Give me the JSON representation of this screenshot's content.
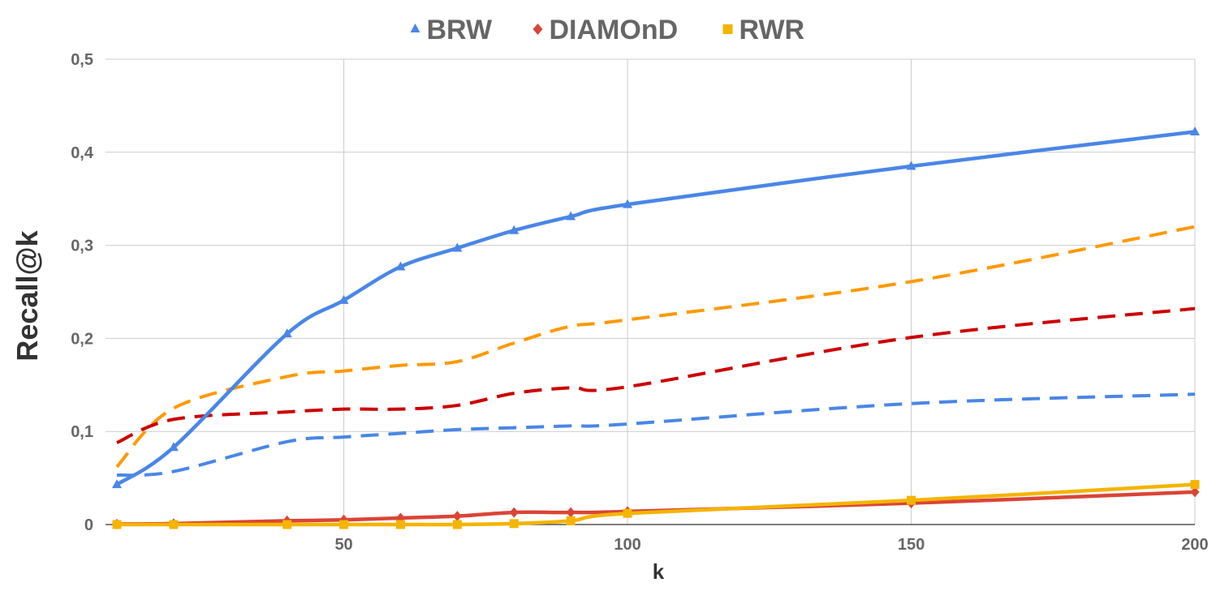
{
  "chart_data": {
    "type": "line",
    "title": "",
    "xlabel": "k",
    "ylabel": "Recall@k",
    "xlim": [
      8,
      200
    ],
    "ylim": [
      0,
      0.5
    ],
    "grid": true,
    "legend_position": "top-center",
    "x_ticks": [
      50,
      100,
      150,
      200
    ],
    "x_tick_labels": [
      "50",
      "100",
      "150",
      "200"
    ],
    "y_ticks": [
      0,
      0.1,
      0.2,
      0.3,
      0.4,
      0.5
    ],
    "y_tick_labels": [
      "0",
      "0,1",
      "0,2",
      "0,3",
      "0,4",
      "0,5"
    ],
    "x": [
      10,
      20,
      40,
      50,
      60,
      70,
      80,
      90,
      100,
      150,
      200
    ],
    "series": [
      {
        "name": "BRW",
        "legend": true,
        "color": "#4a86e8",
        "style": "solid",
        "marker": "triangle",
        "values": [
          0.043,
          0.083,
          0.205,
          0.241,
          0.277,
          0.297,
          0.316,
          0.331,
          0.344,
          0.385,
          0.422
        ]
      },
      {
        "name": "DIAMOnD",
        "legend": true,
        "color": "#db4437",
        "style": "solid",
        "marker": "diamond",
        "values": [
          0.0005,
          0.001,
          0.004,
          0.005,
          0.007,
          0.009,
          0.013,
          0.013,
          0.014,
          0.023,
          0.035
        ]
      },
      {
        "name": "RWR",
        "legend": true,
        "color": "#f4b400",
        "style": "solid",
        "marker": "square",
        "values": [
          0.0,
          0.0,
          0.0,
          0.0,
          0.0,
          0.0,
          0.001,
          0.004,
          0.012,
          0.026,
          0.043
        ]
      },
      {
        "legend": false,
        "color": "#ff9900",
        "style": "dashed",
        "marker": "none",
        "values": [
          0.062,
          0.125,
          0.159,
          0.165,
          0.171,
          0.175,
          0.195,
          0.213,
          0.22,
          0.261,
          0.32
        ]
      },
      {
        "legend": false,
        "color": "#cc0000",
        "style": "dashed",
        "marker": "none",
        "values": [
          0.088,
          0.113,
          0.121,
          0.124,
          0.124,
          0.128,
          0.141,
          0.147,
          0.148,
          0.201,
          0.232
        ]
      },
      {
        "legend": false,
        "color": "#4a86e8",
        "style": "dashed",
        "marker": "none",
        "values": [
          0.053,
          0.057,
          0.089,
          0.094,
          0.098,
          0.102,
          0.104,
          0.106,
          0.108,
          0.13,
          0.14
        ]
      }
    ]
  }
}
